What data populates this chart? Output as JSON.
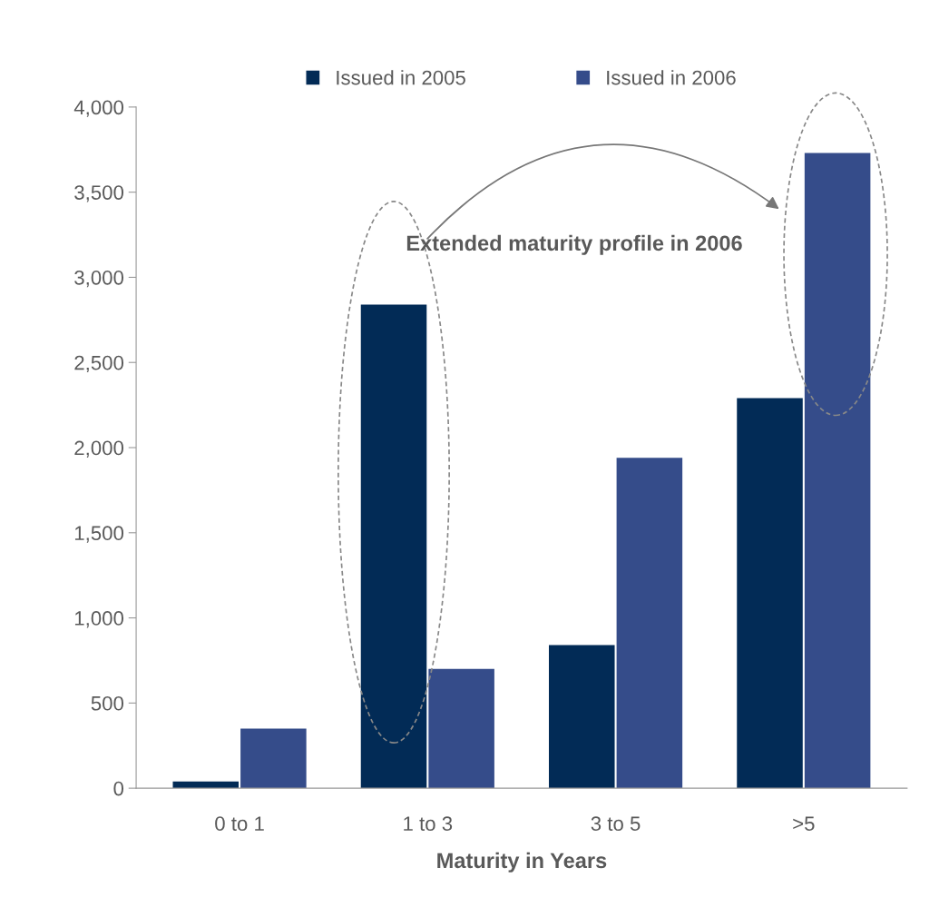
{
  "chart_data": {
    "type": "bar",
    "xlabel": "Maturity in Years",
    "categories": [
      "0 to 1",
      "1 to 3",
      "3 to 5",
      ">5"
    ],
    "series": [
      {
        "name": "Issued in 2005",
        "color": "#022b56",
        "values": [
          40,
          2840,
          840,
          2290
        ]
      },
      {
        "name": "Issued in 2006",
        "color": "#354c8a",
        "values": [
          350,
          700,
          1940,
          3730
        ]
      }
    ],
    "ylim": [
      0,
      4000
    ],
    "yticks": [
      0,
      {
        "value": 500,
        "label": "500"
      },
      {
        "value": 1000,
        "label": "1,000"
      },
      {
        "value": 1500,
        "label": "1,500"
      },
      {
        "value": 2000,
        "label": "2,000"
      },
      {
        "value": 2500,
        "label": "2,500"
      },
      {
        "value": 3000,
        "label": "3,000"
      },
      {
        "value": 3500,
        "label": "3,500"
      },
      {
        "value": 4000,
        "label": "4,000"
      }
    ],
    "grid": false,
    "legend": "top",
    "annotations": [
      "Extended maturity profile in 2006"
    ]
  }
}
